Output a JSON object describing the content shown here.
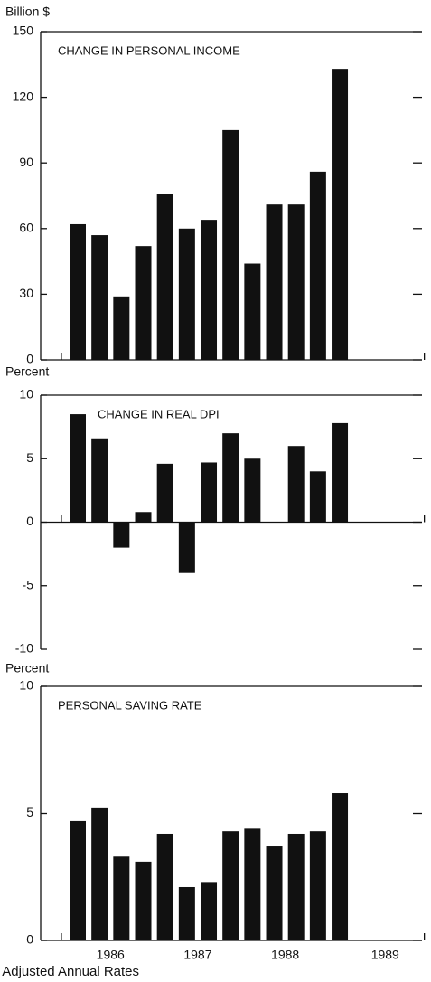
{
  "chart_data": [
    {
      "type": "bar",
      "title": "CHANGE IN PERSONAL INCOME",
      "ylabel": "Billion $",
      "categories": [
        null,
        null,
        null,
        null,
        null,
        null,
        null,
        null,
        null,
        null,
        null,
        null,
        null
      ],
      "values": [
        62,
        57,
        29,
        52,
        76,
        60,
        64,
        105,
        44,
        71,
        71,
        86,
        133
      ],
      "color": "#111111",
      "ylim": [
        0,
        150
      ],
      "yticks": [
        0,
        30,
        60,
        90,
        120,
        150
      ]
    },
    {
      "type": "bar",
      "title": "CHANGE IN REAL DPI",
      "ylabel": "Percent",
      "categories": [
        null,
        null,
        null,
        null,
        null,
        null,
        null,
        null,
        null,
        null,
        null,
        null,
        null
      ],
      "values": [
        8.5,
        6.6,
        -2,
        0.8,
        4.6,
        -4,
        4.7,
        7,
        5,
        0,
        6,
        4,
        7.8
      ],
      "color": "#111111",
      "ylim": [
        -10,
        10
      ],
      "yticks": [
        -10,
        -5,
        0,
        5,
        10
      ]
    },
    {
      "type": "bar",
      "title": "PERSONAL SAVING RATE",
      "ylabel": "Percent",
      "categories": [
        null,
        null,
        null,
        null,
        null,
        null,
        null,
        null,
        null,
        null,
        null,
        null,
        null
      ],
      "values": [
        4.7,
        5.2,
        3.3,
        3.1,
        4.2,
        2.1,
        2.3,
        4.3,
        4.4,
        3.7,
        4.2,
        4.3,
        5.8
      ],
      "color": "#111111",
      "ylim": [
        0,
        10
      ],
      "yticks": [
        0,
        5,
        10
      ],
      "x_labels": [
        "1986",
        "1987",
        "1988",
        "1989"
      ],
      "xlabel": "Based on Seasonally Adjusted Annual Rates"
    }
  ]
}
